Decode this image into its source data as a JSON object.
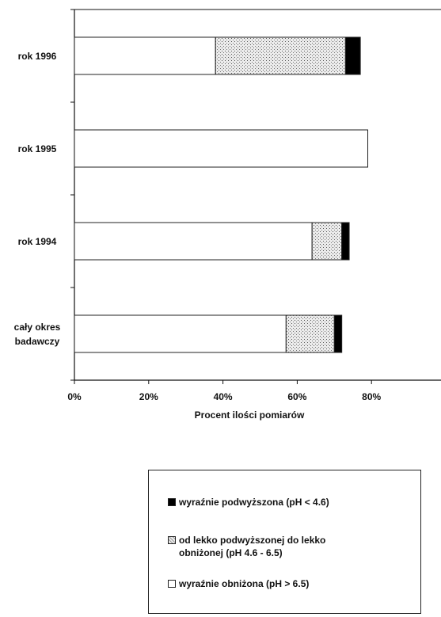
{
  "chart_data": {
    "type": "bar",
    "stacked": true,
    "orientation": "horizontal",
    "categories": [
      "rok 1996",
      "rok 1995",
      "rok 1994",
      "cały okres badawczy"
    ],
    "series": [
      {
        "name": "wyraźnie obniżona (pH > 6.5)",
        "values": [
          38,
          79,
          64,
          57
        ],
        "color": "#ffffff",
        "pattern": "none"
      },
      {
        "name": "od lekko podwyższonej do lekko obniżonej (pH 4.6 - 6.5)",
        "values": [
          35,
          0,
          8,
          13
        ],
        "color": "#d9d9d9",
        "pattern": "dots"
      },
      {
        "name": "wyraźnie podwyższona (pH < 4.6)",
        "values": [
          4,
          0,
          2,
          2
        ],
        "color": "#000000",
        "pattern": "solid"
      }
    ],
    "xticks": [
      "0%",
      "20%",
      "40%",
      "60%",
      "80%"
    ],
    "xlabel": "Procent ilości pomiarów",
    "xlim": [
      0,
      100
    ]
  },
  "legend": {
    "items": [
      {
        "label": "wyraźnie podwyższona (pH < 4.6)",
        "icon": "filled-square-icon"
      },
      {
        "label": "od lekko podwyższonej do lekko obniżonej (pH 4.6 - 6.5)",
        "icon": "dotted-square-icon"
      },
      {
        "label": "wyraźnie obniżona (pH > 6.5)",
        "icon": "empty-square-icon"
      }
    ]
  }
}
